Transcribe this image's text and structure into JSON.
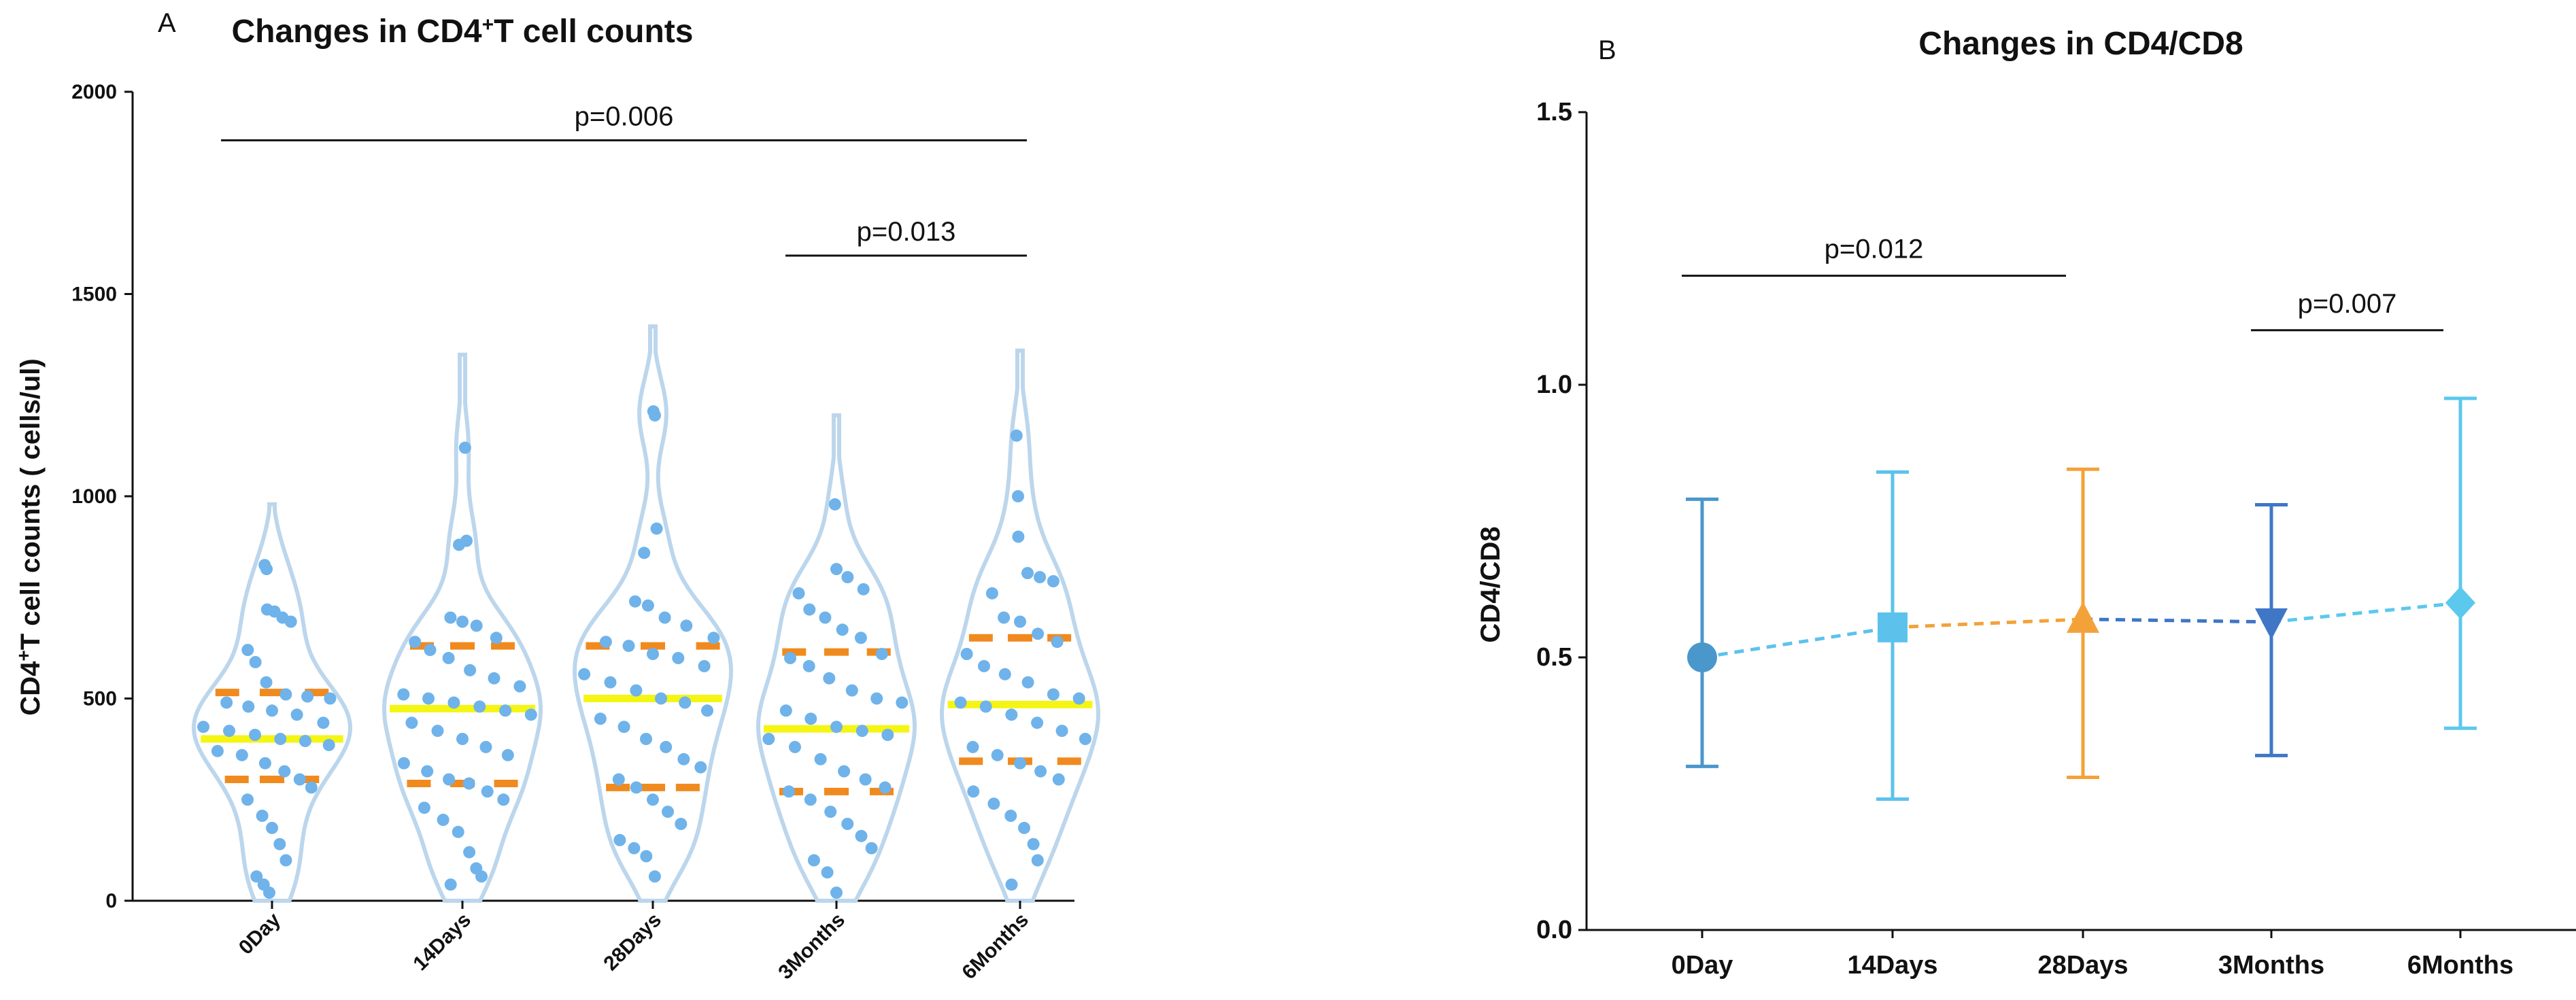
{
  "chart_data": [
    {
      "panel": "A",
      "type": "violin",
      "title_main": "Changes in CD4",
      "title_sup": "+",
      "title_rest": "T cell counts",
      "ylabel_main": "CD4",
      "ylabel_sup": "+",
      "ylabel_rest": "T cell counts ( cells/ul)",
      "xlabel": "",
      "ylim": [
        0,
        2000
      ],
      "yticks": [
        0,
        500,
        1000,
        1500,
        2000
      ],
      "categories": [
        "0Day",
        "14Days",
        "28Days",
        "3Months",
        "6Months"
      ],
      "colors": {
        "violin": "#bcd6ec",
        "points": "#6fb3ea",
        "median": "#f5f514",
        "quartile": "#f08a1f"
      },
      "groups": [
        {
          "name": "0Day",
          "median": 400,
          "q1": 300,
          "q3": 515,
          "min": 0,
          "max": 980,
          "points": [
            830,
            820,
            720,
            715,
            700,
            690,
            620,
            590,
            540,
            510,
            505,
            500,
            490,
            480,
            470,
            460,
            440,
            430,
            420,
            410,
            400,
            395,
            385,
            370,
            360,
            340,
            320,
            300,
            280,
            250,
            210,
            180,
            140,
            100,
            60,
            40,
            20
          ]
        },
        {
          "name": "14Days",
          "median": 475,
          "q1": 290,
          "q3": 630,
          "min": 0,
          "max": 1350,
          "points": [
            1120,
            890,
            880,
            700,
            690,
            680,
            650,
            640,
            620,
            600,
            570,
            550,
            530,
            510,
            500,
            490,
            480,
            470,
            460,
            440,
            420,
            400,
            380,
            360,
            340,
            320,
            300,
            290,
            270,
            250,
            230,
            200,
            170,
            120,
            80,
            60,
            40
          ]
        },
        {
          "name": "28Days",
          "median": 500,
          "q1": 280,
          "q3": 630,
          "min": 0,
          "max": 1420,
          "points": [
            1210,
            1200,
            920,
            860,
            740,
            730,
            700,
            680,
            650,
            640,
            630,
            610,
            600,
            580,
            560,
            540,
            520,
            500,
            490,
            470,
            450,
            430,
            400,
            380,
            350,
            330,
            300,
            280,
            250,
            220,
            190,
            150,
            130,
            110,
            60
          ]
        },
        {
          "name": "3Months",
          "median": 425,
          "q1": 270,
          "q3": 615,
          "min": 0,
          "max": 1200,
          "points": [
            980,
            820,
            800,
            770,
            760,
            720,
            700,
            670,
            650,
            610,
            600,
            580,
            550,
            520,
            500,
            490,
            470,
            450,
            430,
            420,
            410,
            400,
            380,
            350,
            320,
            300,
            280,
            270,
            250,
            220,
            190,
            160,
            130,
            100,
            70,
            20
          ]
        },
        {
          "name": "6Months",
          "median": 485,
          "q1": 345,
          "q3": 650,
          "min": 0,
          "max": 1360,
          "points": [
            1150,
            1000,
            900,
            810,
            800,
            790,
            760,
            700,
            690,
            660,
            640,
            610,
            580,
            560,
            540,
            510,
            500,
            490,
            480,
            460,
            440,
            420,
            400,
            380,
            360,
            340,
            320,
            300,
            270,
            240,
            210,
            180,
            140,
            100,
            40
          ]
        }
      ],
      "annotations": [
        {
          "text": "p=0.006",
          "from": "0Day",
          "to": "6Months",
          "y": 1880
        },
        {
          "text": "p=0.013",
          "from": "3Months",
          "to": "6Months",
          "y": 1595
        }
      ]
    },
    {
      "panel": "B",
      "type": "line",
      "title": "Changes in CD4/CD8",
      "xlabel": "",
      "ylabel": "CD4/CD8",
      "ylim": [
        0.0,
        1.5
      ],
      "yticks": [
        0.0,
        0.5,
        1.0,
        1.5
      ],
      "ytick_labels": [
        "0.0",
        "0.5",
        "1.0",
        "1.5"
      ],
      "categories": [
        "0Day",
        "14Days",
        "28Days",
        "3Months",
        "6Months"
      ],
      "points": [
        {
          "x": "0Day",
          "mean": 0.5,
          "lower": 0.3,
          "upper": 0.79,
          "marker": "circle",
          "color": "#4a97cc"
        },
        {
          "x": "14Days",
          "mean": 0.555,
          "lower": 0.24,
          "upper": 0.84,
          "marker": "square",
          "color": "#5cc2ec"
        },
        {
          "x": "28Days",
          "mean": 0.57,
          "lower": 0.28,
          "upper": 0.845,
          "marker": "triangle-up",
          "color": "#f3a23a"
        },
        {
          "x": "3Months",
          "mean": 0.565,
          "lower": 0.32,
          "upper": 0.78,
          "marker": "triangle-down",
          "color": "#3f76c6"
        },
        {
          "x": "6Months",
          "mean": 0.6,
          "lower": 0.37,
          "upper": 0.975,
          "marker": "diamond",
          "color": "#5cc8ee"
        }
      ],
      "annotations": [
        {
          "text": "p=0.012",
          "from": "0Day",
          "to": "28Days",
          "y": 1.2
        },
        {
          "text": "p=0.007",
          "from": "3Months",
          "to": "6Months",
          "y": 1.1
        }
      ]
    }
  ]
}
